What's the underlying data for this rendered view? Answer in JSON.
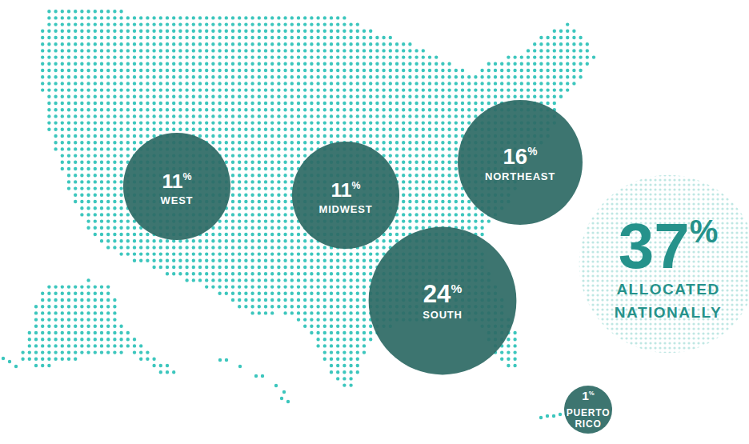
{
  "chart_data": {
    "type": "bubble_map",
    "categories": [
      "WEST",
      "MIDWEST",
      "NORTHEAST",
      "SOUTH",
      "PUERTO RICO",
      "ALLOCATED NATIONALLY"
    ],
    "values": [
      11,
      11,
      16,
      24,
      1,
      37
    ],
    "value_labels": [
      "11%",
      "11%",
      "16%",
      "24%",
      "1%",
      "37%"
    ],
    "colors": [
      "#2e6a65",
      "#2e6a65",
      "#2e6a65",
      "#2e6a65",
      "#2e6a65",
      "#26928b"
    ]
  }
}
